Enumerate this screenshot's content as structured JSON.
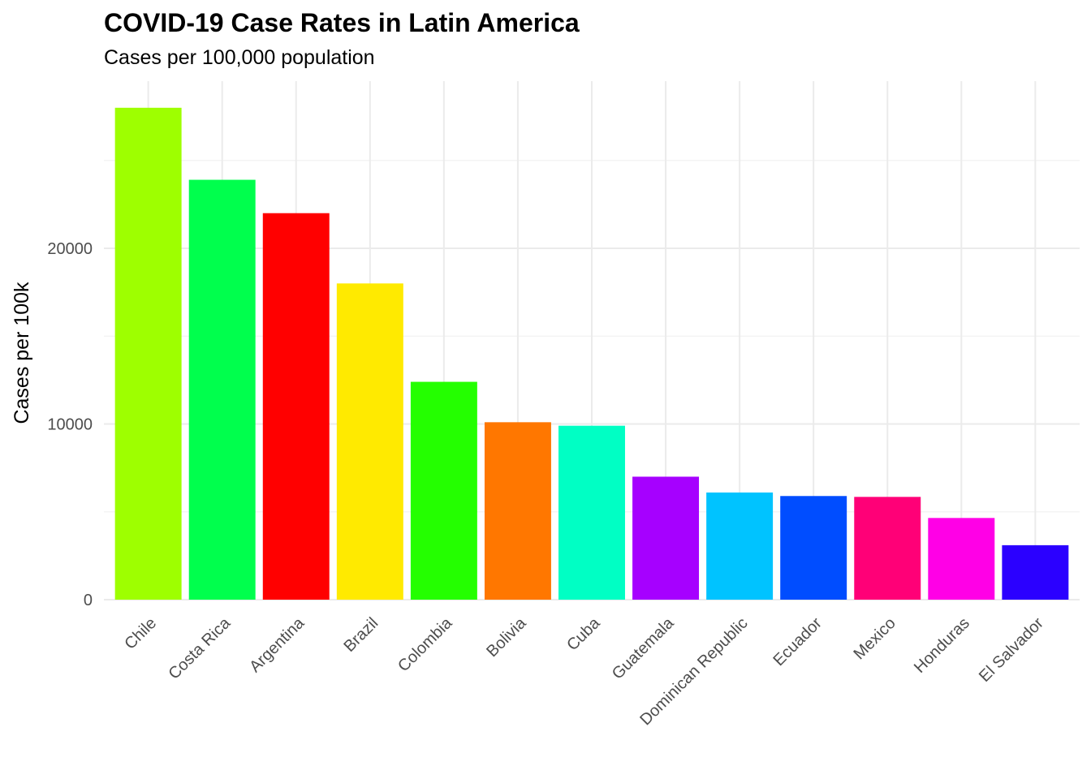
{
  "chart_data": {
    "type": "bar",
    "title": "COVID-19 Case Rates in Latin America",
    "subtitle": "Cases per 100,000 population",
    "xlabel": "",
    "ylabel": "Cases per 100k",
    "ylim": [
      0,
      28000
    ],
    "yticks": [
      0,
      10000,
      20000
    ],
    "grid": true,
    "legend": "none",
    "categories": [
      "Chile",
      "Costa Rica",
      "Argentina",
      "Brazil",
      "Colombia",
      "Bolivia",
      "Cuba",
      "Guatemala",
      "Dominican Republic",
      "Ecuador",
      "Mexico",
      "Honduras",
      "El Salvador"
    ],
    "values": [
      28000,
      23900,
      22000,
      18000,
      12400,
      10100,
      9900,
      7000,
      6100,
      5900,
      5850,
      4650,
      3100
    ],
    "colors": [
      "#9EFF00",
      "#00FF4D",
      "#FF0000",
      "#FFEA00",
      "#24FF00",
      "#FF7700",
      "#00FFC4",
      "#A600FF",
      "#00C3FF",
      "#004DFF",
      "#FF0077",
      "#FF00E6",
      "#2B00FF"
    ]
  }
}
